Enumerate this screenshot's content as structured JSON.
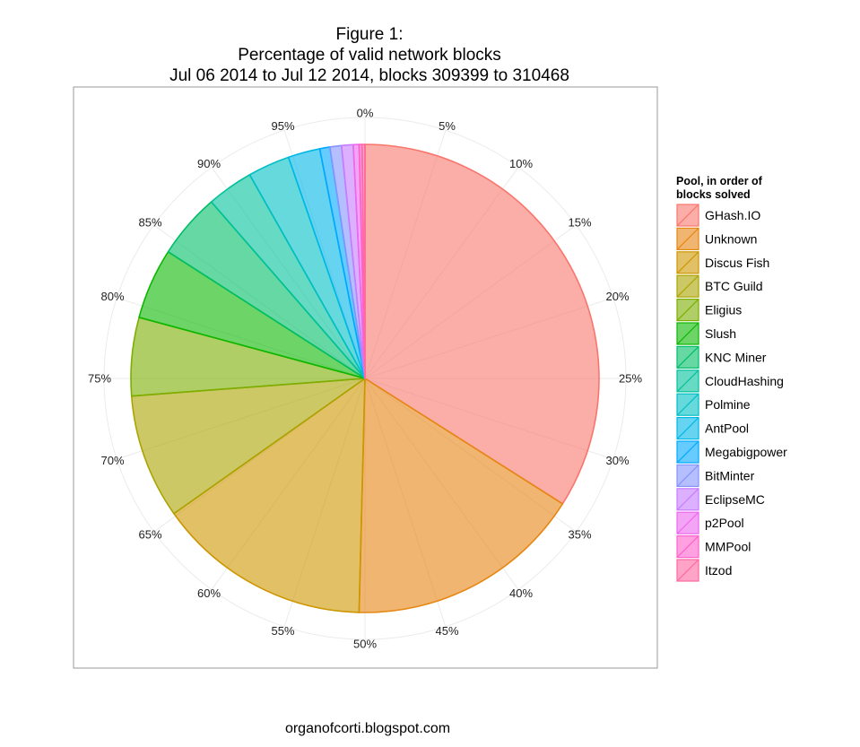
{
  "chart_data": {
    "type": "pie",
    "title_lines": [
      "Figure 1:",
      "Percentage of valid network blocks",
      "Jul 06 2014 to Jul 12 2014, blocks 309399 to 310468"
    ],
    "angle_tick_labels": [
      "0%",
      "5%",
      "10%",
      "15%",
      "20%",
      "25%",
      "30%",
      "35%",
      "40%",
      "45%",
      "50%",
      "55%",
      "60%",
      "65%",
      "70%",
      "75%",
      "80%",
      "85%",
      "90%",
      "95%"
    ],
    "grid": true,
    "legend_title_lines": [
      "Pool, in order of",
      "blocks solved"
    ],
    "legend_position": "right",
    "direction": "clockwise-from-top",
    "slices": [
      {
        "name": "GHash.IO",
        "percent": 34.0,
        "color": "#F8766D"
      },
      {
        "name": "Unknown",
        "percent": 16.4,
        "color": "#E68613"
      },
      {
        "name": "Discus Fish",
        "percent": 14.8,
        "color": "#CD9600"
      },
      {
        "name": "BTC Guild",
        "percent": 8.6,
        "color": "#ABA300"
      },
      {
        "name": "Eligius",
        "percent": 5.4,
        "color": "#7CAE00"
      },
      {
        "name": "Slush",
        "percent": 4.9,
        "color": "#0CB702"
      },
      {
        "name": "KNC Miner",
        "percent": 4.5,
        "color": "#00BE67"
      },
      {
        "name": "CloudHashing",
        "percent": 3.2,
        "color": "#00C19A"
      },
      {
        "name": "Polmine",
        "percent": 2.9,
        "color": "#00BFC4"
      },
      {
        "name": "AntPool",
        "percent": 2.2,
        "color": "#00B8E7"
      },
      {
        "name": "Megabigpower",
        "percent": 0.7,
        "color": "#00A9FF"
      },
      {
        "name": "BitMinter",
        "percent": 0.8,
        "color": "#8494FF"
      },
      {
        "name": "EclipseMC",
        "percent": 0.8,
        "color": "#C77CFF"
      },
      {
        "name": "p2Pool",
        "percent": 0.4,
        "color": "#ED68ED"
      },
      {
        "name": "MMPool",
        "percent": 0.2,
        "color": "#FF61CC"
      },
      {
        "name": "Itzod",
        "percent": 0.2,
        "color": "#FF68A1"
      }
    ]
  },
  "caption": "organofcorti.blogspot.com"
}
